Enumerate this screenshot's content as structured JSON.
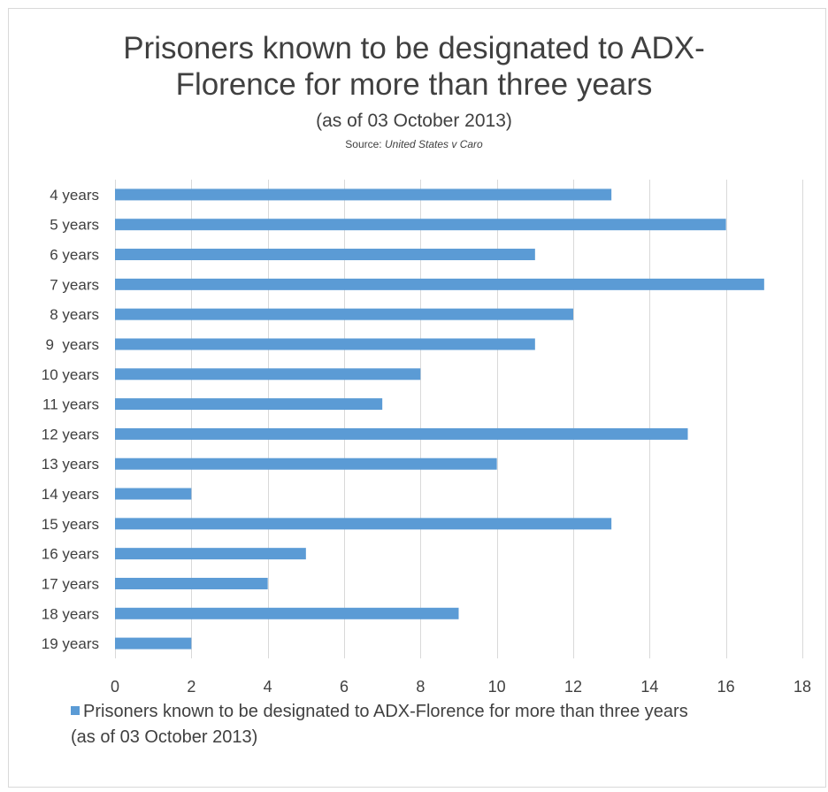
{
  "chart_data": {
    "type": "bar",
    "orientation": "horizontal",
    "title_lines": [
      "Prisoners known to be designated to ADX-",
      "Florence for more than three years"
    ],
    "subtitle": "(as of 03 October 2013)",
    "source_prefix": "Source: ",
    "source_case": "United States v Caro",
    "categories": [
      "4 years",
      "5 years",
      "6 years",
      "7 years",
      "8 years",
      "9  years",
      "10 years",
      "11 years",
      "12 years",
      "13 years",
      "14 years",
      "15 years",
      "16 years",
      "17 years",
      "18 years",
      "19 years"
    ],
    "series": [
      {
        "name": "Prisoners known to be designated to ADX-Florence for more than three years (as of 03 October 2013)",
        "values": [
          13,
          16,
          11,
          17,
          12,
          11,
          8,
          7,
          15,
          10,
          2,
          13,
          5,
          4,
          9,
          2
        ],
        "color": "#5b9bd5"
      }
    ],
    "xlim": [
      0,
      18
    ],
    "xticks": [
      0,
      2,
      4,
      6,
      8,
      10,
      12,
      14,
      16,
      18
    ],
    "grid": "vertical",
    "legend_position": "bottom",
    "xlabel": "",
    "ylabel": ""
  },
  "legend": {
    "line1": "Prisoners known to be designated to ADX-Florence for more than three years",
    "line2": "(as of 03 October 2013)"
  },
  "colors": {
    "bar": "#5b9bd5",
    "grid": "#d9d9d9",
    "text": "#404040"
  }
}
